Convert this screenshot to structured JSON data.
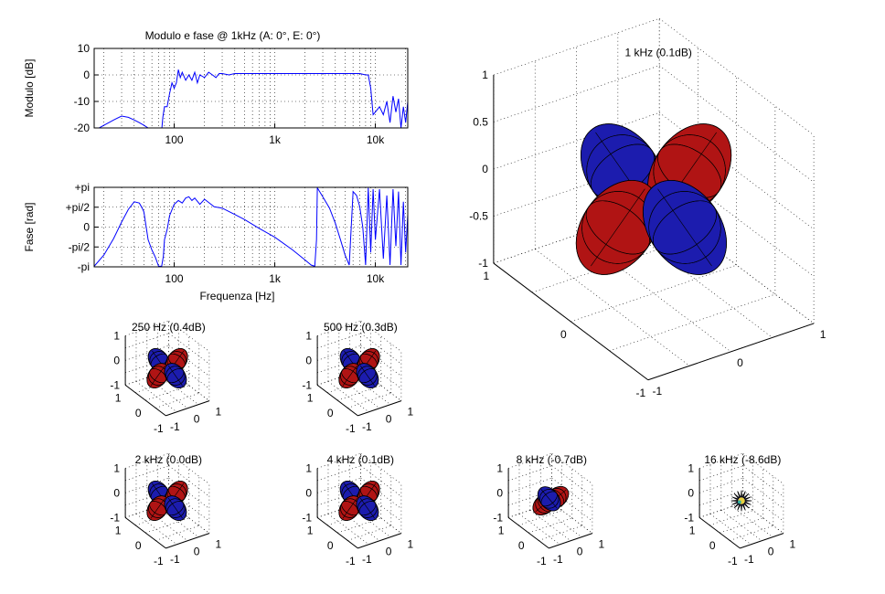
{
  "chart_data": [
    {
      "type": "line",
      "id": "magnitude",
      "title": "Modulo e fase @ 1kHz (A: 0°, E: 0°)",
      "ylabel": "Modulo [dB]",
      "xscale": "log",
      "xlim": [
        16,
        21000
      ],
      "ylim": [
        -20,
        10
      ],
      "xticks": [
        {
          "v": 100,
          "label": "100"
        },
        {
          "v": 1000,
          "label": "1k"
        },
        {
          "v": 10000,
          "label": "10k"
        }
      ],
      "yticks": [
        {
          "v": 10,
          "label": "10"
        },
        {
          "v": 0,
          "label": "0"
        },
        {
          "v": -10,
          "label": "-10"
        },
        {
          "v": -20,
          "label": "-20"
        }
      ],
      "grid": true,
      "color": "#0000ff",
      "x": [
        16,
        20,
        25,
        30,
        35,
        40,
        45,
        50,
        55,
        60,
        65,
        70,
        75,
        77,
        80,
        85,
        90,
        95,
        100,
        105,
        110,
        115,
        120,
        130,
        140,
        150,
        160,
        170,
        180,
        200,
        220,
        240,
        260,
        280,
        300,
        350,
        400,
        500,
        700,
        1000,
        1500,
        2000,
        3000,
        5000,
        7000,
        8000,
        8500,
        9000,
        9500,
        10000,
        11000,
        12000,
        13000,
        14000,
        15000,
        16000,
        17000,
        18000,
        19000,
        20000,
        21000
      ],
      "y": [
        -21,
        -19,
        -17,
        -15.5,
        -16,
        -17,
        -18,
        -19,
        -20,
        -21,
        -21,
        -21,
        -21,
        -16,
        -12,
        -12,
        -7,
        -3,
        -5,
        -3,
        2,
        -1,
        1,
        -2,
        0,
        -2,
        1,
        -3,
        0,
        -1,
        1,
        0,
        -1,
        0.5,
        0.5,
        0,
        0.5,
        0.5,
        0.5,
        0.5,
        0.5,
        0.5,
        0.5,
        0.5,
        0.5,
        0,
        0,
        -5,
        -15,
        -14,
        -12,
        -15,
        -10,
        -18,
        -8,
        -14,
        -9,
        -20,
        -12,
        -18,
        -10
      ]
    },
    {
      "type": "line",
      "id": "phase",
      "xlabel": "Frequenza [Hz]",
      "ylabel": "Fase [rad]",
      "xscale": "log",
      "xlim": [
        16,
        21000
      ],
      "ylim": [
        -3.1416,
        3.1416
      ],
      "xticks": [
        {
          "v": 100,
          "label": "100"
        },
        {
          "v": 1000,
          "label": "1k"
        },
        {
          "v": 10000,
          "label": "10k"
        }
      ],
      "yticks": [
        {
          "v": 3.1416,
          "label": "+pi"
        },
        {
          "v": 1.5708,
          "label": "+pi/2"
        },
        {
          "v": 0,
          "label": "0"
        },
        {
          "v": -1.5708,
          "label": "-pi/2"
        },
        {
          "v": -3.1416,
          "label": "-pi"
        }
      ],
      "grid": true,
      "color": "#0000ff",
      "x": [
        16,
        20,
        25,
        30,
        35,
        40,
        45,
        48,
        50,
        55,
        60,
        65,
        70,
        75,
        78,
        80,
        85,
        90,
        100,
        110,
        120,
        130,
        140,
        150,
        160,
        180,
        200,
        250,
        300,
        400,
        500,
        700,
        1000,
        1500,
        2000,
        2300,
        2500,
        2600,
        2650,
        2700,
        3000,
        3500,
        4000,
        4500,
        5000,
        5500,
        6000,
        6500,
        7000,
        7500,
        8000,
        8500,
        9000,
        9500,
        10000,
        11000,
        12000,
        13000,
        14000,
        15000,
        16000,
        17000,
        18000,
        19000,
        20000,
        21000
      ],
      "y": [
        -3.1,
        -2.2,
        -0.9,
        0.4,
        1.4,
        2.0,
        1.9,
        1.5,
        1.2,
        -1.0,
        -1.8,
        -2.4,
        -3.1,
        -3.1,
        -2.3,
        -1.0,
        -0.2,
        0.9,
        1.8,
        2.1,
        1.9,
        2.3,
        2.4,
        2.1,
        2.3,
        1.8,
        2.2,
        1.6,
        1.5,
        1.0,
        0.6,
        -0.1,
        -0.8,
        -1.8,
        -2.6,
        -3.0,
        -3.1,
        -1.0,
        3.1,
        3.0,
        2.4,
        1.5,
        0.3,
        -1.0,
        -2.2,
        -3.0,
        2.8,
        2.5,
        1.6,
        0.0,
        -3.0,
        3.1,
        -2.0,
        3.0,
        -1.0,
        3.0,
        -2.5,
        2.5,
        -3.0,
        3.0,
        -1.5,
        2.8,
        -3.0,
        2.0,
        -2.0,
        1.0
      ]
    },
    {
      "type": "surface3d",
      "id": "polar-1k",
      "title": "1 kHz (0.1dB)",
      "zticks": [
        "1",
        "0.5",
        "0",
        "-0.5",
        "-1"
      ],
      "xticks": [
        "1",
        "0",
        "-1"
      ],
      "yticks": [
        "-1",
        "0",
        "1"
      ],
      "lobe_colors": [
        "#b01414",
        "#1c1cae"
      ]
    },
    {
      "type": "surface3d",
      "id": "polar-250",
      "title": "250 Hz (0.4dB)",
      "zticks": [
        "1",
        "0",
        "-1"
      ],
      "xticks": [
        "1",
        "0",
        "-1"
      ],
      "yticks": [
        "-1",
        "0",
        "1"
      ]
    },
    {
      "type": "surface3d",
      "id": "polar-500",
      "title": "500 Hz (0.3dB)",
      "zticks": [
        "1",
        "0",
        "-1"
      ],
      "xticks": [
        "1",
        "0",
        "-1"
      ],
      "yticks": [
        "-1",
        "0",
        "1"
      ]
    },
    {
      "type": "surface3d",
      "id": "polar-2k",
      "title": "2 kHz (0.0dB)",
      "zticks": [
        "1",
        "0",
        "-1"
      ],
      "xticks": [
        "1",
        "0",
        "-1"
      ],
      "yticks": [
        "-1",
        "0",
        "1"
      ]
    },
    {
      "type": "surface3d",
      "id": "polar-4k",
      "title": "4 kHz (0.1dB)",
      "zticks": [
        "1",
        "0",
        "-1"
      ],
      "xticks": [
        "1",
        "0",
        "-1"
      ],
      "yticks": [
        "-1",
        "0",
        "1"
      ]
    },
    {
      "type": "surface3d",
      "id": "polar-8k",
      "title": "8 kHz (-0.7dB)",
      "zticks": [
        "1",
        "0",
        "-1"
      ],
      "xticks": [
        "1",
        "0",
        "-1"
      ],
      "yticks": [
        "-1",
        "0",
        "1"
      ]
    },
    {
      "type": "surface3d",
      "id": "polar-16k",
      "title": "16 kHz (-8.6dB)",
      "zticks": [
        "1",
        "0",
        "-1"
      ],
      "xticks": [
        "1",
        "0",
        "-1"
      ],
      "yticks": [
        "-1",
        "0",
        "1"
      ]
    }
  ]
}
